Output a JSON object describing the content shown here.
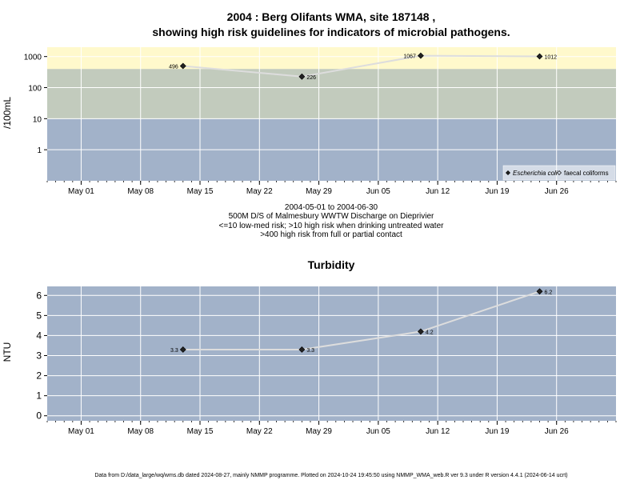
{
  "title_line1": "2004 : Berg Olifants WMA, site 187148 ,",
  "title_line2": "showing high risk guidelines for indicators of microbial pathogens.",
  "subtitle_lines": [
    "2004-05-01 to 2004-06-30",
    "500M D/S of Malmesbury WWTW Discharge on Dieprivier",
    "<=10 low-med risk; >10 high risk when drinking untreated water",
    ">400 high risk from full or partial contact"
  ],
  "footer": "Data from D:/data_large/wq/wms.db dated 2024-08-27, mainly NMMP programme. Plotted on 2024-10-24 19:45:50 using NMMP_WMA_web.R ver 9.3 under R version 4.4.1 (2024-06-14 ucrt)",
  "colors": {
    "zone_high": "#fff9cc",
    "zone_mid": "#c2cbbd",
    "zone_low": "#a2b2c9",
    "grid": "#ffffff",
    "line": "#dddddd",
    "point": "#222222"
  },
  "chart_data": [
    {
      "type": "line",
      "ylabel": "/100mL",
      "yscale": "log",
      "ylim": [
        0.1,
        2000
      ],
      "yticks": [
        1,
        10,
        100,
        1000
      ],
      "ytick_labels": [
        "1",
        "10",
        "100",
        "1000"
      ],
      "xlim": [
        "2004-04-27",
        "2004-07-03"
      ],
      "xticks": [
        "2004-05-01",
        "2004-05-08",
        "2004-05-15",
        "2004-05-22",
        "2004-05-29",
        "2004-06-05",
        "2004-06-12",
        "2004-06-19",
        "2004-06-26"
      ],
      "xtick_labels": [
        "May 01",
        "May 08",
        "May 15",
        "May 22",
        "May 29",
        "Jun 05",
        "Jun 12",
        "Jun 19",
        "Jun 26"
      ],
      "bands": [
        {
          "from": 0.1,
          "to": 10,
          "color": "#a2b2c9"
        },
        {
          "from": 10,
          "to": 400,
          "color": "#c2cbbd"
        },
        {
          "from": 400,
          "to": 2000,
          "color": "#fff9cc"
        }
      ],
      "legend": {
        "placement": "bottom-right",
        "entries": [
          {
            "label": "Escherichia coli",
            "marker": "filled-diamond",
            "italic": true
          },
          {
            "label": "faecal coliforms",
            "marker": "open-diamond",
            "italic": false
          }
        ]
      },
      "series": [
        {
          "name": "Escherichia coli",
          "x": [
            "2004-05-13",
            "2004-05-27",
            "2004-06-10",
            "2004-06-24"
          ],
          "y": [
            496,
            226,
            1067,
            1012
          ],
          "labels": [
            "496",
            "226",
            "1067",
            "1012"
          ],
          "label_side": [
            "left",
            "right",
            "left",
            "right"
          ]
        }
      ]
    },
    {
      "type": "line",
      "title": "Turbidity",
      "ylabel": "NTU",
      "ylim": [
        -0.25,
        6.45
      ],
      "yticks": [
        0,
        1,
        2,
        3,
        4,
        5,
        6
      ],
      "ytick_labels": [
        "0",
        "1",
        "2",
        "3",
        "4",
        "5",
        "6"
      ],
      "xlim": [
        "2004-04-27",
        "2004-07-03"
      ],
      "xticks": [
        "2004-05-01",
        "2004-05-08",
        "2004-05-15",
        "2004-05-22",
        "2004-05-29",
        "2004-06-05",
        "2004-06-12",
        "2004-06-19",
        "2004-06-26"
      ],
      "xtick_labels": [
        "May 01",
        "May 08",
        "May 15",
        "May 22",
        "May 29",
        "Jun 05",
        "Jun 12",
        "Jun 19",
        "Jun 26"
      ],
      "background": "#a2b2c9",
      "series": [
        {
          "name": "Turbidity",
          "x": [
            "2004-05-13",
            "2004-05-27",
            "2004-06-10",
            "2004-06-24"
          ],
          "y": [
            3.3,
            3.3,
            4.2,
            6.2
          ],
          "labels": [
            "3.3",
            "3.3",
            "4.2",
            "6.2"
          ],
          "label_side": [
            "left",
            "right",
            "right",
            "right"
          ]
        }
      ]
    }
  ]
}
